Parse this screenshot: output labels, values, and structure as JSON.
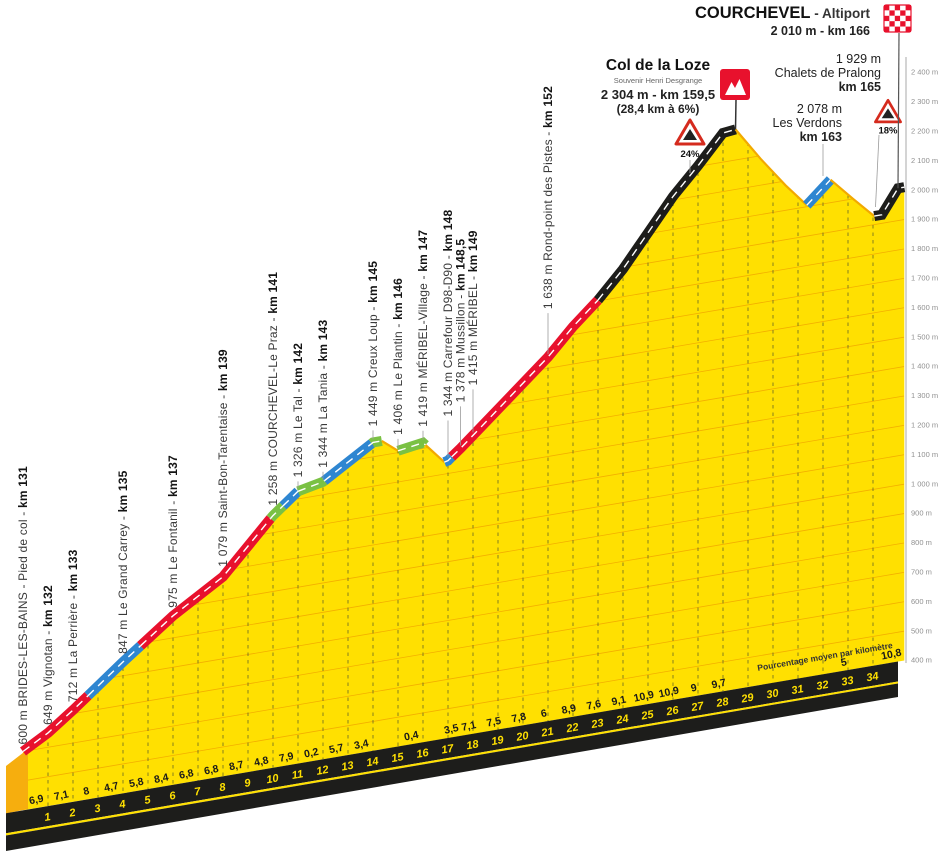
{
  "colors": {
    "yellow": "#FFE001",
    "cap_orange": "#F6AE0E",
    "grid_orange": "#F2A900",
    "km_line": "#6F6F25",
    "road": {
      "red": "#E8112D",
      "blue": "#2E86D1",
      "green": "#7AC143",
      "black": "#1D1D1B",
      "descent": "#F2A900"
    },
    "base_black": "#1D1D1B",
    "label_dark": "#3A3A3A",
    "label_bold": "#141414",
    "axis_grey": "#909090",
    "pointer_grey": "#9B9B9B",
    "warning_red": "#D52B1E",
    "white": "#FFFFFF"
  },
  "labels": {
    "summit": {
      "title": "Col de la Loze",
      "subtitle": "Souvenir Henri Desgrange",
      "elevation_km": "2 304 m - km 159,5",
      "climb_stats": "(28,4 km à 6%)"
    },
    "finish": {
      "title": "COURCHEVEL",
      "suffix": " - Altiport",
      "elevation_km": "2 010 m - km 166"
    },
    "pralong": {
      "l1": "1 929 m",
      "l2": "Chalets de Pralong",
      "l3": "km 165"
    },
    "verdons": {
      "l1": "2 078 m",
      "l2": "Les Verdons",
      "l3": "km 163"
    }
  },
  "chart_data": {
    "type": "area",
    "title": "Stage profile - Brides-les-Bains to Courchevel Altiport via Col de la Loze",
    "x_axis": {
      "unit": "km (stage km 131-166, local 0-35)",
      "km_start": 131,
      "tick_min": 1,
      "tick_max": 34
    },
    "elevation_axis": {
      "unit": "m",
      "min": 400,
      "max": 2400,
      "step": 100,
      "labels": [
        "2 400 m",
        "2 300 m",
        "2 200 m",
        "2 100 m",
        "2 000 m",
        "1 900 m",
        "1 800 m",
        "1 700 m",
        "1 600 m",
        "1 500 m",
        "1 400 m",
        "1 300 m",
        "1 200 m",
        "1 100 m",
        "1 000 m",
        "900 m",
        "800 m",
        "700 m",
        "600 m",
        "500 m",
        "400 m"
      ]
    },
    "gradient_axis_caption": "Pourcentage moyen par kilomètre",
    "profile_points": [
      [
        0,
        600
      ],
      [
        1,
        649
      ],
      [
        2,
        712
      ],
      [
        4,
        847
      ],
      [
        6,
        975
      ],
      [
        8,
        1079
      ],
      [
        10,
        1258
      ],
      [
        11,
        1326
      ],
      [
        12,
        1344
      ],
      [
        14,
        1449
      ],
      [
        14.35,
        1449
      ],
      [
        15,
        1406
      ],
      [
        16,
        1419
      ],
      [
        16.85,
        1341
      ],
      [
        17,
        1344
      ],
      [
        17.5,
        1378
      ],
      [
        18,
        1415
      ],
      [
        21,
        1638
      ],
      [
        22,
        1727
      ],
      [
        23,
        1803
      ],
      [
        24,
        1894
      ],
      [
        25,
        2003
      ],
      [
        26,
        2112
      ],
      [
        27,
        2202
      ],
      [
        28,
        2299
      ],
      [
        28.5,
        2304
      ],
      [
        29.5,
        2190
      ],
      [
        30.5,
        2085
      ],
      [
        31.35,
        2005
      ],
      [
        32.3,
        2078
      ],
      [
        33.2,
        2000
      ],
      [
        34.05,
        1929
      ],
      [
        34.35,
        1929
      ],
      [
        35,
        2010
      ],
      [
        35.25,
        2010
      ]
    ],
    "road_segments": [
      {
        "from": 0,
        "to": 2.6,
        "type": "red"
      },
      {
        "from": 2.6,
        "to": 4.7,
        "type": "blue"
      },
      {
        "from": 4.7,
        "to": 9.9,
        "type": "red"
      },
      {
        "from": 9.9,
        "to": 10.4,
        "type": "green"
      },
      {
        "from": 10.4,
        "to": 11.0,
        "type": "blue"
      },
      {
        "from": 11.0,
        "to": 12.05,
        "type": "green"
      },
      {
        "from": 12.05,
        "to": 13.95,
        "type": "blue"
      },
      {
        "from": 13.95,
        "to": 14.35,
        "type": "green"
      },
      {
        "from": 14.35,
        "to": 15.0,
        "type": "descent"
      },
      {
        "from": 15.0,
        "to": 16.1,
        "type": "green"
      },
      {
        "from": 16.1,
        "to": 16.85,
        "type": "descent"
      },
      {
        "from": 16.85,
        "to": 17.15,
        "type": "blue"
      },
      {
        "from": 17.15,
        "to": 23.0,
        "type": "red"
      },
      {
        "from": 23.0,
        "to": 28.5,
        "type": "black"
      },
      {
        "from": 28.5,
        "to": 31.35,
        "type": "descent"
      },
      {
        "from": 31.35,
        "to": 32.3,
        "type": "blue"
      },
      {
        "from": 32.3,
        "to": 34.05,
        "type": "descent"
      },
      {
        "from": 34.05,
        "to": 35.25,
        "type": "black"
      }
    ],
    "gradient_labels": [
      {
        "km": 1,
        "text": "6,9"
      },
      {
        "km": 2,
        "text": "7,1"
      },
      {
        "km": 3,
        "text": "8"
      },
      {
        "km": 4,
        "text": "4,7"
      },
      {
        "km": 5,
        "text": "5,8"
      },
      {
        "km": 6,
        "text": "8,4"
      },
      {
        "km": 7,
        "text": "6,8"
      },
      {
        "km": 8,
        "text": "6,8"
      },
      {
        "km": 9,
        "text": "8,7"
      },
      {
        "km": 10,
        "text": "4,8"
      },
      {
        "km": 11,
        "text": "7,9"
      },
      {
        "km": 12,
        "text": "0,2"
      },
      {
        "km": 13,
        "text": "5,7"
      },
      {
        "km": 14,
        "text": "3,4"
      },
      {
        "km": 16,
        "text": "0,4"
      },
      {
        "km": 17.6,
        "text": "3,5"
      },
      {
        "km": 18.3,
        "text": "7,1"
      },
      {
        "km": 19.3,
        "text": "7,5"
      },
      {
        "km": 20.3,
        "text": "7,8"
      },
      {
        "km": 21.3,
        "text": "6"
      },
      {
        "km": 22.3,
        "text": "8,9"
      },
      {
        "km": 23.3,
        "text": "7,6"
      },
      {
        "km": 24.3,
        "text": "9,1"
      },
      {
        "km": 25.3,
        "text": "10,9"
      },
      {
        "km": 26.3,
        "text": "10,9"
      },
      {
        "km": 27.3,
        "text": "9"
      },
      {
        "km": 28.3,
        "text": "9,7"
      },
      {
        "km": 33.3,
        "text": "5"
      },
      {
        "km": 35.2,
        "text": "10,8"
      }
    ],
    "waypoints": [
      {
        "km": 0,
        "alt": 600,
        "label": "600 m BRIDES-LES-BAINS - Pied de col - ",
        "km_label": "km 131",
        "gap": 5
      },
      {
        "km": 1,
        "alt": 649,
        "label": "649 m Vignotan - ",
        "km_label": "km 132",
        "gap": 6
      },
      {
        "km": 2,
        "alt": 712,
        "label": "712 m La Perrière - ",
        "km_label": "km 133",
        "gap": 6
      },
      {
        "km": 4,
        "alt": 847,
        "label": "847 m Le Grand Carrey - ",
        "km_label": "km 135",
        "gap": 6
      },
      {
        "km": 6,
        "alt": 975,
        "label": "975 m Le Fontanil - ",
        "km_label": "km 137",
        "gap": 6
      },
      {
        "km": 8,
        "alt": 1079,
        "label": "1 079 m Saint-Bon-Tarentaise - ",
        "km_label": "km 139",
        "gap": 8
      },
      {
        "km": 10,
        "alt": 1258,
        "label": "1 258 m COURCHEVEL-Le Praz - ",
        "km_label": "km 141",
        "gap": 8
      },
      {
        "km": 11,
        "alt": 1326,
        "label": "1 326 m Le Tal - ",
        "km_label": "km 142",
        "gap": 12
      },
      {
        "km": 12,
        "alt": 1344,
        "label": "1 344 m La Tania - ",
        "km_label": "km 143",
        "gap": 12
      },
      {
        "km": 14,
        "alt": 1449,
        "label": "1 449 m Creux Loup - ",
        "km_label": "km 145",
        "gap": 14
      },
      {
        "km": 15,
        "alt": 1406,
        "label": "1 406 m Le Plantin - ",
        "km_label": "km 146",
        "gap": 14
      },
      {
        "km": 16,
        "alt": 1419,
        "label": "1 419 m MÉRIBEL-Village - ",
        "km_label": "km 147",
        "gap": 14
      },
      {
        "km": 17,
        "alt": 1344,
        "label": "1 344 m Carrefour D98-D90 - ",
        "km_label": "km 148",
        "gap": 42
      },
      {
        "km": 17.5,
        "alt": 1378,
        "label": "1 378 m Mussillon - ",
        "km_label": "km 148,5",
        "gap": 44
      },
      {
        "km": 18,
        "alt": 1415,
        "label": "1 415 m MÉRIBEL - ",
        "km_label": "km 149",
        "gap": 48
      },
      {
        "km": 21,
        "alt": 1638,
        "label": "1 638 m Rond-point des Pistes - ",
        "km_label": "km 152",
        "gap": 46
      }
    ],
    "summit": {
      "km": 28.5,
      "alt": 2304,
      "warning_pct": "24%"
    },
    "finish": {
      "km": 35,
      "alt": 2010,
      "warning_pct": "18%"
    }
  }
}
